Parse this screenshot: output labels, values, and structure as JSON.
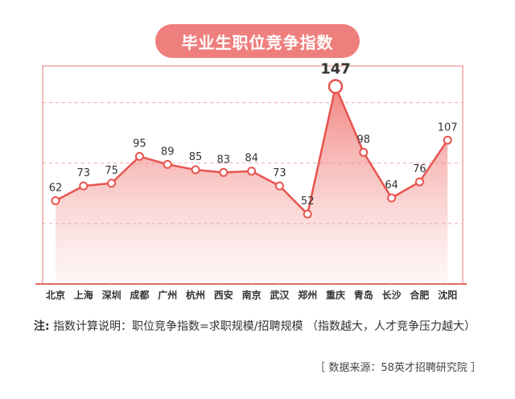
{
  "title": "毕业生职位竞争指数",
  "chart_data": {
    "type": "area",
    "title": "毕业生职位竞争指数",
    "categories": [
      "北京",
      "上海",
      "深圳",
      "成都",
      "广州",
      "杭州",
      "西安",
      "南京",
      "武汉",
      "郑州",
      "重庆",
      "青岛",
      "长沙",
      "合肥",
      "沈阳"
    ],
    "series": [
      {
        "values": [
          62,
          73,
          75,
          95,
          89,
          85,
          83,
          84,
          73,
          52,
          147,
          98,
          64,
          76,
          107
        ]
      }
    ],
    "highlight": {
      "category": "重庆",
      "value": 147
    },
    "ylim": [
      0,
      170
    ],
    "grid": "dashed-horizontal",
    "colors": {
      "accent": "#ee7f7d",
      "line": "#e8534f",
      "frame": "#f0a7a5"
    }
  },
  "note": {
    "label": "注:",
    "text": "指数计算说明：职位竞争指数=求职规模/招聘规模 （指数越大，人才竞争压力越大）"
  },
  "source": "［ 数据来源：58英才招聘研究院 ］"
}
